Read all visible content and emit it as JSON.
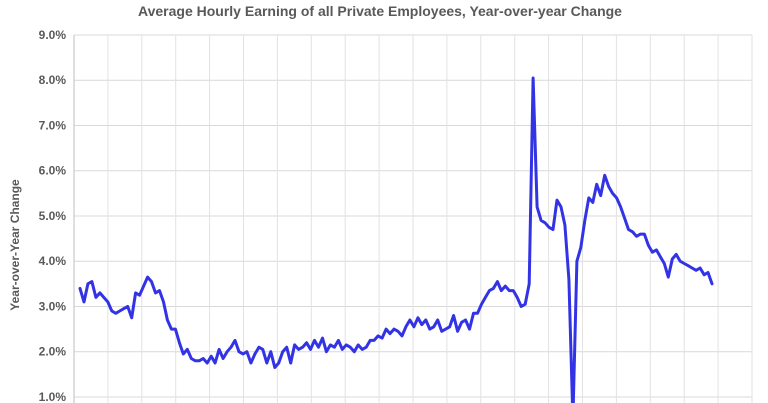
{
  "chart_data": {
    "type": "line",
    "title": "Average Hourly Earning of all Private Employees, Year-over-year Change",
    "ylabel": "Year-over-Year Change",
    "xlabel": "",
    "ylim": [
      0.8,
      9.0
    ],
    "yticks": [
      "1.0%",
      "2.0%",
      "3.0%",
      "4.0%",
      "5.0%",
      "6.0%",
      "7.0%",
      "8.0%",
      "9.0%"
    ],
    "ytick_values": [
      1,
      2,
      3,
      4,
      5,
      6,
      7,
      8,
      9
    ],
    "grid": true,
    "legend": "none",
    "x_tick_count": 20,
    "series": [
      {
        "color": "#3333e6",
        "values": [
          3.4,
          3.1,
          3.5,
          3.55,
          3.2,
          3.3,
          3.2,
          3.1,
          2.9,
          2.85,
          2.9,
          2.95,
          3.0,
          2.75,
          3.3,
          3.25,
          3.45,
          3.65,
          3.55,
          3.3,
          3.35,
          3.1,
          2.7,
          2.5,
          2.5,
          2.2,
          1.95,
          2.05,
          1.85,
          1.8,
          1.8,
          1.85,
          1.75,
          1.9,
          1.75,
          2.05,
          1.85,
          2.0,
          2.1,
          2.25,
          2.0,
          1.95,
          2.0,
          1.75,
          1.95,
          2.1,
          2.05,
          1.75,
          2.0,
          1.65,
          1.75,
          2.0,
          2.1,
          1.75,
          2.15,
          2.05,
          2.1,
          2.2,
          2.05,
          2.25,
          2.1,
          2.3,
          2.0,
          2.15,
          2.1,
          2.25,
          2.05,
          2.15,
          2.1,
          2.0,
          2.15,
          2.05,
          2.1,
          2.25,
          2.25,
          2.35,
          2.3,
          2.5,
          2.4,
          2.5,
          2.45,
          2.35,
          2.55,
          2.7,
          2.55,
          2.75,
          2.6,
          2.7,
          2.5,
          2.55,
          2.7,
          2.45,
          2.5,
          2.55,
          2.8,
          2.45,
          2.65,
          2.7,
          2.5,
          2.85,
          2.85,
          3.05,
          3.2,
          3.35,
          3.4,
          3.55,
          3.35,
          3.45,
          3.35,
          3.35,
          3.2,
          3.0,
          3.05,
          3.5,
          8.05,
          5.2,
          4.9,
          4.85,
          4.75,
          4.7,
          5.35,
          5.2,
          4.8,
          3.6,
          0.5,
          4.0,
          4.3,
          4.9,
          5.4,
          5.3,
          5.7,
          5.45,
          5.9,
          5.65,
          5.5,
          5.4,
          5.2,
          4.95,
          4.7,
          4.65,
          4.55,
          4.6,
          4.6,
          4.35,
          4.2,
          4.25,
          4.1,
          3.95,
          3.65,
          4.05,
          4.15,
          4.0,
          3.95,
          3.9,
          3.85,
          3.8,
          3.85,
          3.7,
          3.75,
          3.5
        ]
      }
    ]
  }
}
